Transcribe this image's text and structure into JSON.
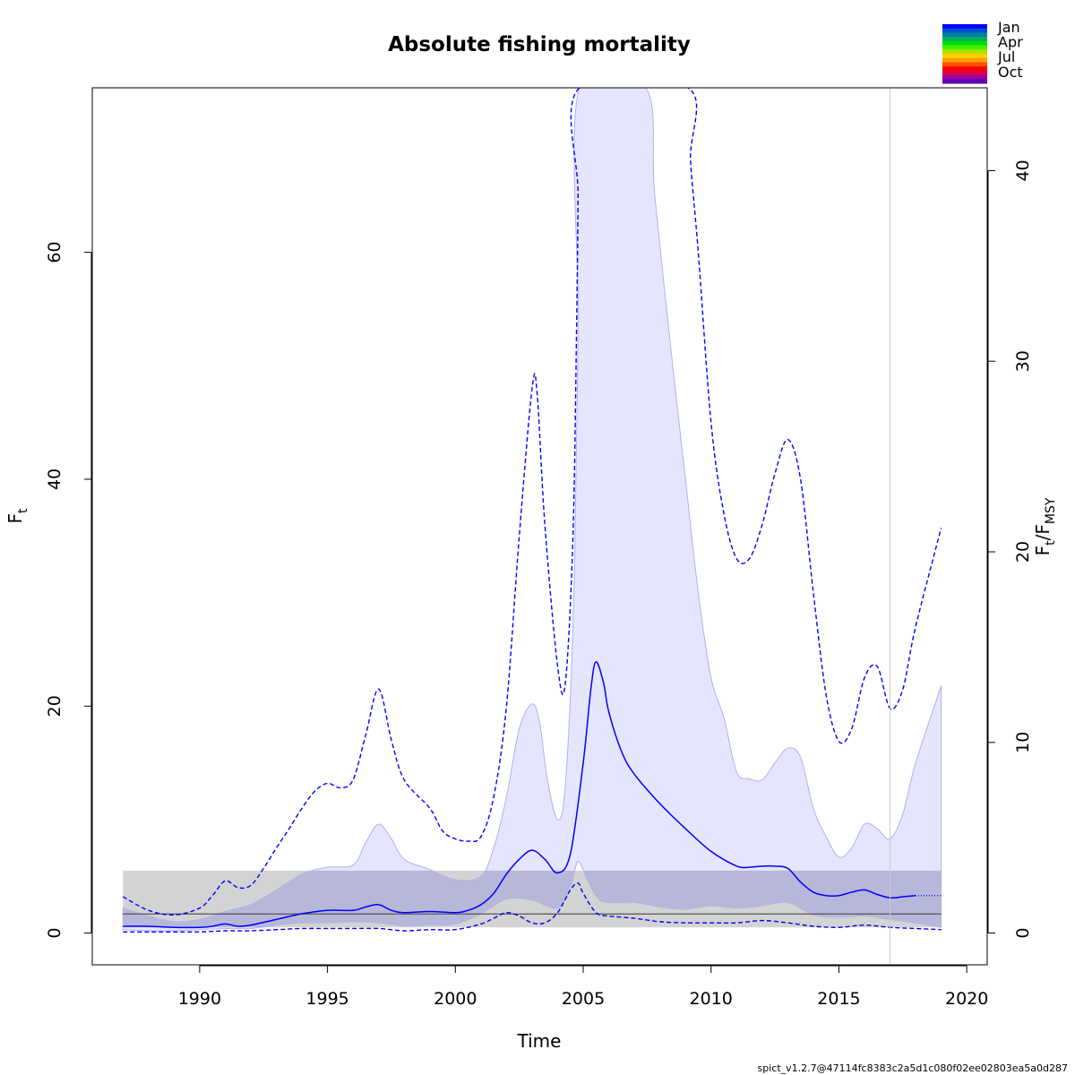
{
  "chart_data": {
    "type": "line",
    "title": "Absolute fishing mortality",
    "xlabel": "Time",
    "ylabel": "F",
    "ylabel_sub": "t",
    "y2label_parts": [
      "F",
      "t",
      "/F",
      "MSY"
    ],
    "xlim": [
      1985.8,
      2020.8
    ],
    "ylim": [
      -2.8,
      74.5
    ],
    "y2_scale": 1.68,
    "x_ticks": [
      1990,
      1995,
      2000,
      2005,
      2010,
      2015,
      2020
    ],
    "y_ticks": [
      0,
      20,
      40,
      60
    ],
    "y2_ticks": [
      0,
      10,
      20,
      30,
      40
    ],
    "legend": {
      "labels": [
        "Jan",
        "Apr",
        "Jul",
        "Oct"
      ],
      "colors": [
        "#0000ff",
        "#0050d0",
        "#0080a0",
        "#00b060",
        "#00e000",
        "#40f000",
        "#b0e000",
        "#ffd000",
        "#ffa000",
        "#ff5000",
        "#ff0000",
        "#e00040",
        "#a000a0",
        "#6000b0"
      ]
    },
    "fmsy": {
      "estimate": 1.68,
      "lower": 0.5,
      "upper": 5.5,
      "x_range": [
        1987,
        2019
      ]
    },
    "vline_x": 2017,
    "colors": {
      "estimate": "#0000ff",
      "ci_fill": "#e2e2fd",
      "ci_border": "#b0b0f2",
      "band_fill": "#d3d3d3",
      "overlap_fill": "#b7b7d9",
      "fmsy_line": "#555555",
      "vline": "#cccccc"
    },
    "series": [
      {
        "name": "F estimate",
        "x": [
          1987,
          1988,
          1989,
          1990,
          1990.5,
          1991,
          1991.5,
          1992,
          1993,
          1994,
          1995,
          1996,
          1996.5,
          1997,
          1997.5,
          1998,
          1999,
          2000,
          2000.5,
          2001,
          2001.5,
          2002,
          2002.5,
          2003,
          2003.5,
          2004,
          2004.5,
          2005,
          2005.3,
          2005.5,
          2005.8,
          2006,
          2006.5,
          2007,
          2008,
          2009,
          2010,
          2011,
          2011.5,
          2012,
          2012.5,
          2013,
          2013.5,
          2014,
          2014.5,
          2015,
          2015.5,
          2016,
          2016.5,
          2017,
          2017.5,
          2018
        ],
        "y": [
          0.6,
          0.6,
          0.5,
          0.5,
          0.6,
          0.8,
          0.6,
          0.7,
          1.2,
          1.7,
          2.0,
          2.0,
          2.3,
          2.5,
          2.0,
          1.8,
          1.9,
          1.8,
          2.0,
          2.5,
          3.5,
          5.2,
          6.5,
          7.3,
          6.5,
          5.3,
          7.0,
          15.0,
          21.5,
          23.9,
          22.0,
          19.5,
          16.0,
          14.0,
          11.4,
          9.2,
          7.2,
          5.9,
          5.8,
          5.9,
          5.9,
          5.7,
          4.5,
          3.6,
          3.3,
          3.3,
          3.6,
          3.8,
          3.4,
          3.1,
          3.2,
          3.3
        ]
      },
      {
        "name": "Forecast",
        "x": [
          2018,
          2019
        ],
        "y": [
          3.3,
          3.3
        ]
      },
      {
        "name": "Upper CI",
        "x": [
          1987,
          1988,
          1989,
          1990,
          1990.5,
          1991,
          1991.5,
          1992,
          1992.5,
          1993,
          1993.5,
          1994,
          1994.5,
          1995,
          1995.5,
          1996,
          1996.5,
          1997,
          1997.5,
          1998,
          1999,
          1999.5,
          2000,
          2000.5,
          2001,
          2001.5,
          2002,
          2002.5,
          2003,
          2003.2,
          2003.5,
          2004,
          2004.3,
          2004.6,
          2004.75,
          2004.8,
          2004.85,
          2009.1,
          2009.2,
          2009.5,
          2010,
          2010.5,
          2011,
          2011.5,
          2012,
          2012.5,
          2013,
          2013.5,
          2014,
          2014.5,
          2015,
          2015.5,
          2016,
          2016.5,
          2017,
          2017.5,
          2018,
          2019
        ],
        "y": [
          3.2,
          2.0,
          1.6,
          2.2,
          3.3,
          4.6,
          4.0,
          4.2,
          5.7,
          7.5,
          9.2,
          11.0,
          12.5,
          13.2,
          12.8,
          13.5,
          17.5,
          21.5,
          17.0,
          13.5,
          11.0,
          9.0,
          8.3,
          8.1,
          8.5,
          12.0,
          20.0,
          35.0,
          48.0,
          47.5,
          36.0,
          23.5,
          22.0,
          35.0,
          55.0,
          65.0,
          74.5,
          74.5,
          68.0,
          60.0,
          45.0,
          37.0,
          33.0,
          33.0,
          36.0,
          40.5,
          43.5,
          40.0,
          30.0,
          21.0,
          16.9,
          18.0,
          22.5,
          23.5,
          19.8,
          21.5,
          27.0,
          35.7
        ]
      },
      {
        "name": "Lower CI",
        "x": [
          1987,
          1988,
          1989,
          1990,
          1991,
          1992,
          1993,
          1994,
          1995,
          1996,
          1997,
          1998,
          1999,
          2000,
          2001,
          2001.5,
          2002,
          2002.5,
          2003,
          2003.5,
          2004,
          2004.5,
          2004.8,
          2005,
          2005.5,
          2006,
          2007,
          2008,
          2009,
          2010,
          2011,
          2012,
          2013,
          2014,
          2015,
          2016,
          2017,
          2018,
          2019
        ],
        "y": [
          0.1,
          0.1,
          0.1,
          0.1,
          0.2,
          0.2,
          0.3,
          0.4,
          0.4,
          0.4,
          0.4,
          0.2,
          0.3,
          0.3,
          0.8,
          1.3,
          1.8,
          1.5,
          0.9,
          0.9,
          1.8,
          3.8,
          4.4,
          3.5,
          1.8,
          1.5,
          1.3,
          1.0,
          0.9,
          0.9,
          0.9,
          1.1,
          0.9,
          0.6,
          0.5,
          0.7,
          0.5,
          0.4,
          0.3
        ]
      },
      {
        "name": "CI band upper",
        "x": [
          1987,
          1988,
          1989,
          1990,
          1991,
          1992,
          1993,
          1994,
          1995,
          1996,
          1996.5,
          1997,
          1997.5,
          1998,
          1999,
          2000,
          2001,
          2001.5,
          2002,
          2002.5,
          2003,
          2003.3,
          2003.6,
          2004,
          2004.3,
          2004.6,
          2004.75,
          2004.8,
          2004.85,
          2007.45,
          2007.8,
          2008.5,
          2009,
          2009.5,
          2010,
          2010.5,
          2011,
          2011.5,
          2012,
          2012.5,
          2013,
          2013.5,
          2014,
          2014.5,
          2015,
          2015.5,
          2016,
          2016.5,
          2017,
          2017.5,
          2018,
          2019
        ],
        "y": [
          2.2,
          1.5,
          1.0,
          1.2,
          1.9,
          2.5,
          3.8,
          5.2,
          5.8,
          6.0,
          8.0,
          9.6,
          8.3,
          6.5,
          5.6,
          4.7,
          5.0,
          7.5,
          12.0,
          18.0,
          20.2,
          18.5,
          13.5,
          10.0,
          13.0,
          27.0,
          45.0,
          55.0,
          74.5,
          74.5,
          65.0,
          50.0,
          40.0,
          30.0,
          22.5,
          19.0,
          14.2,
          13.6,
          13.5,
          15.0,
          16.3,
          15.5,
          11.0,
          8.5,
          6.7,
          7.5,
          9.6,
          9.2,
          8.3,
          10.5,
          15.0,
          21.8
        ]
      },
      {
        "name": "CI band lower",
        "x": [
          1987,
          1988,
          1989,
          1990,
          1991,
          1992,
          1993,
          1994,
          1995,
          1996,
          1997,
          1998,
          1999,
          2000,
          2001,
          2002,
          2003,
          2004,
          2004.5,
          2004.8,
          2005.2,
          2005.6,
          2006,
          2007,
          2008,
          2009,
          2010,
          2011,
          2012,
          2013,
          2014,
          2015,
          2016,
          2017,
          2018,
          2019
        ],
        "y": [
          0.3,
          0.2,
          0.2,
          0.3,
          0.4,
          0.4,
          0.7,
          0.9,
          0.9,
          1.0,
          0.9,
          0.6,
          0.7,
          0.8,
          1.7,
          3.0,
          2.9,
          2.2,
          4.0,
          6.3,
          4.5,
          3.0,
          2.7,
          2.7,
          2.3,
          2.1,
          2.4,
          2.2,
          2.4,
          2.7,
          1.6,
          1.4,
          1.5,
          1.2,
          0.9,
          0.5
        ]
      }
    ]
  },
  "footer": "spict_v1.2.7@47114fc8383c2a5d1c080f02ee02803ea5a0d287"
}
